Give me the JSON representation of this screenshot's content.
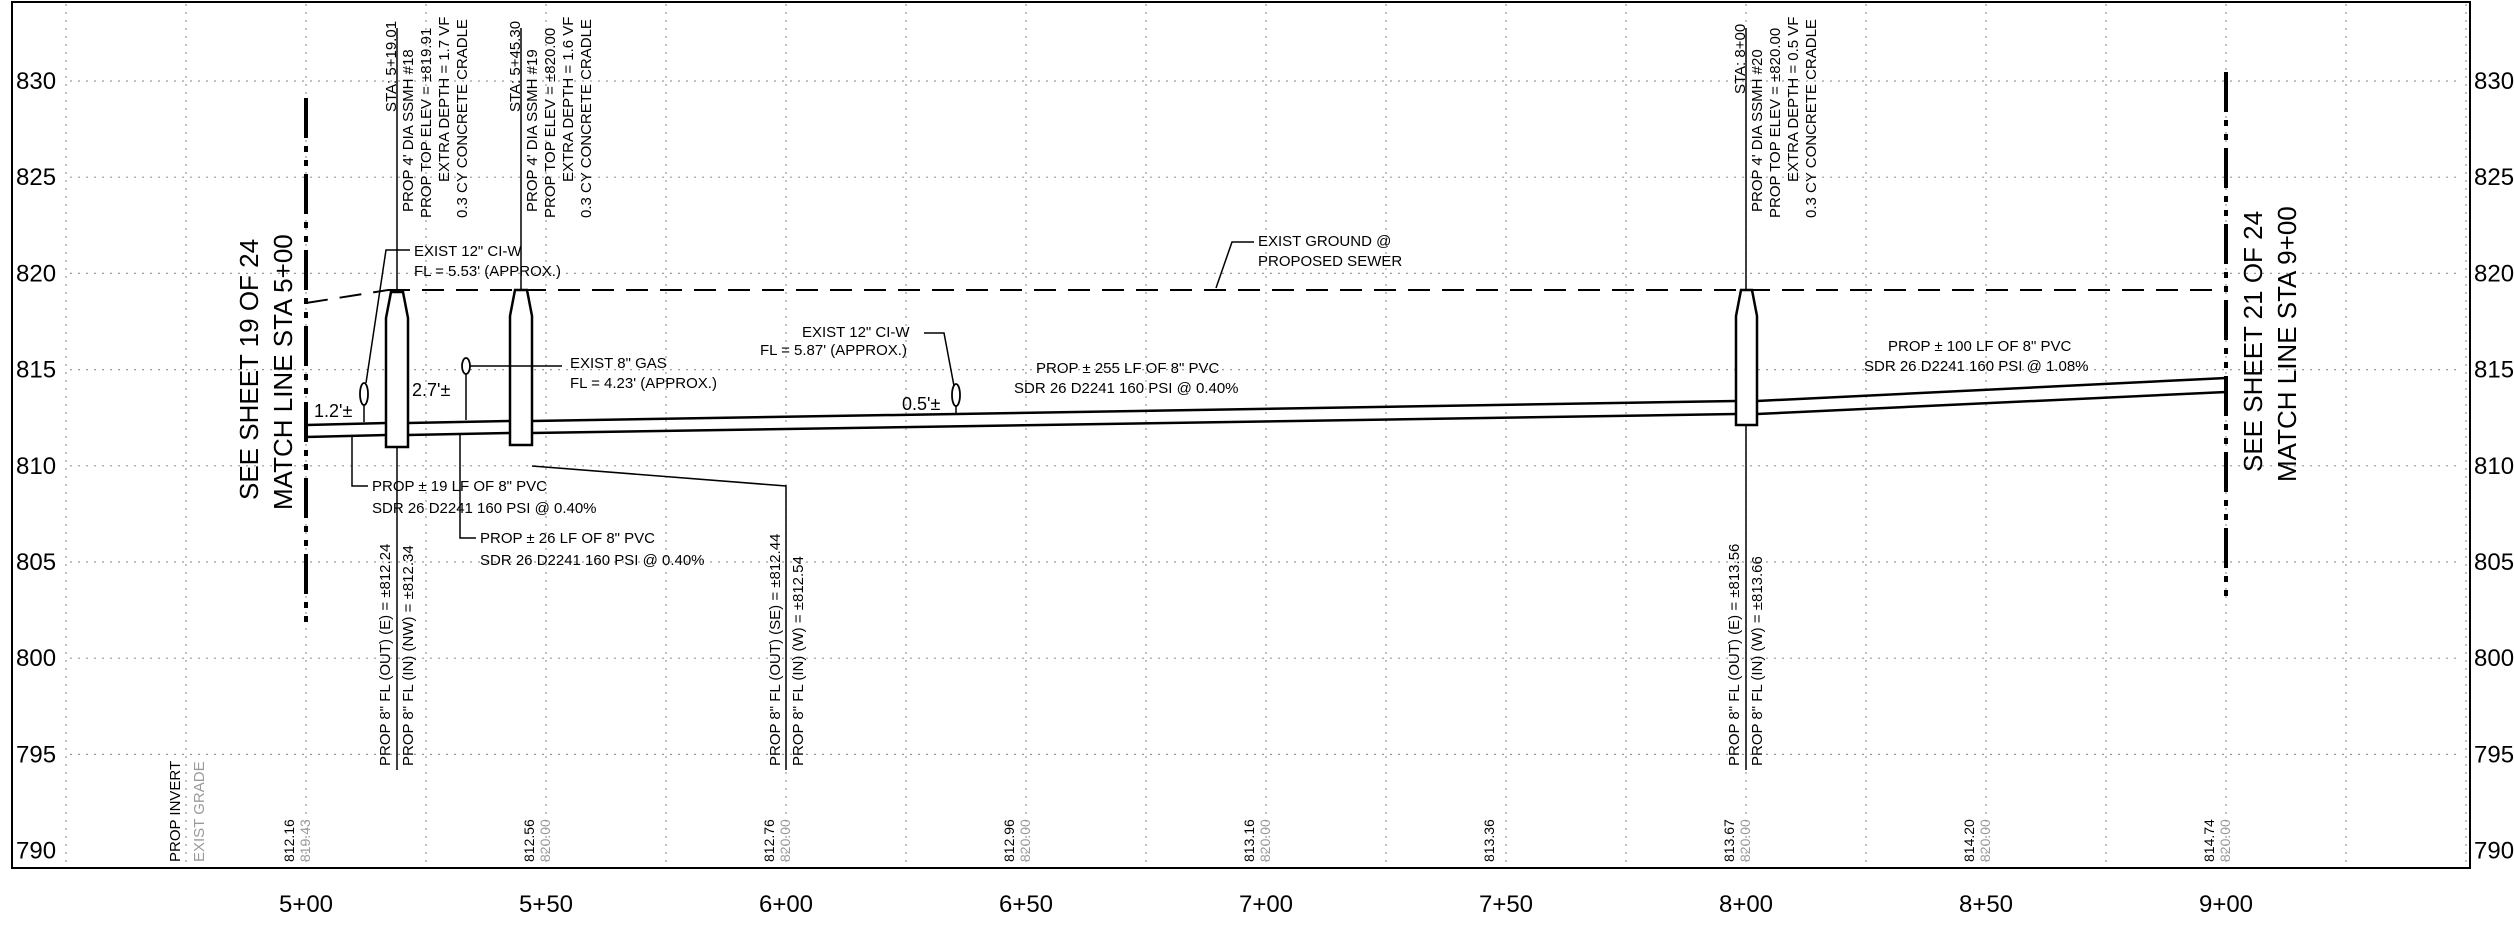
{
  "profile": {
    "elevation_labels": [
      "830",
      "825",
      "820",
      "815",
      "810",
      "805",
      "800",
      "795",
      "790"
    ],
    "elevations": [
      830,
      825,
      820,
      815,
      810,
      805,
      800,
      795,
      790
    ],
    "station_labels": [
      "5+00",
      "5+50",
      "6+00",
      "6+50",
      "7+00",
      "7+50",
      "8+00",
      "8+50",
      "9+00"
    ],
    "stations": [
      500,
      550,
      600,
      650,
      700,
      750,
      800,
      850,
      900
    ],
    "row_labels": {
      "invert": "PROP INVERT",
      "grade": "EXIST GRADE"
    },
    "invert_values": [
      "812.16",
      "812.56",
      "812.76",
      "812.96",
      "813.16",
      "813.36",
      "813.67",
      "814.20",
      "814.74"
    ],
    "invert_stations": [
      500,
      550,
      600,
      650,
      700,
      750,
      800,
      850,
      900
    ],
    "grade_values": [
      "819.43",
      "820.00",
      "820.00",
      "820.00",
      "820.00",
      "820.00",
      "820.00",
      "820.00"
    ],
    "grade_stations": [
      500,
      550,
      600,
      650,
      700,
      800,
      850,
      900
    ],
    "colors": {
      "line": "#000000",
      "grid": "#9a9a9a",
      "grade_text": "#9a9a9a"
    }
  },
  "match_lines": {
    "left": {
      "line1": "SEE SHEET 19 OF 24",
      "line2": "MATCH LINE STA 5+00"
    },
    "right": {
      "line1": "SEE SHEET 21 OF 24",
      "line2": "MATCH LINE STA 9+00"
    }
  },
  "manholes": [
    {
      "sta": "STA: 5+19.01",
      "name": "PROP 4' DIA SSMH #18",
      "top": "PROP TOP ELEV = ±819.91",
      "depth": "EXTRA DEPTH = 1.7 VF",
      "cradle": "0.3 CY CONCRETE CRADLE",
      "fl_out": "PROP 8\" FL (OUT) (E) = ±812.24",
      "fl_in": "PROP 8\" FL (IN) (NW) = ±812.34"
    },
    {
      "sta": "STA: 5+45.30",
      "name": "PROP 4' DIA SSMH #19",
      "top": "PROP TOP ELEV = ±820.00",
      "depth": "EXTRA DEPTH = 1.6 VF",
      "cradle": "0.3 CY CONCRETE CRADLE",
      "fl_out": "PROP 8\" FL (OUT) (SE) = ±812.44",
      "fl_in": "PROP 8\" FL (IN) (W) = ±812.54"
    },
    {
      "sta": "STA: 8+00",
      "name": "PROP 4' DIA SSMH #20",
      "top": "PROP TOP ELEV = ±820.00",
      "depth": "EXTRA DEPTH = 0.5 VF",
      "cradle": "0.3 CY CONCRETE CRADLE",
      "fl_out": "PROP 8\" FL (OUT) (E) = ±813.56",
      "fl_in": "PROP 8\" FL (IN) (W) = ±813.66"
    }
  ],
  "pipes": [
    {
      "line1": "PROP ± 19 LF OF 8\" PVC",
      "line2": "SDR 26 D2241 160 PSI @ 0.40%"
    },
    {
      "line1": "PROP ± 26 LF OF 8\" PVC",
      "line2": "SDR 26 D2241 160 PSI @ 0.40%"
    },
    {
      "line1": "PROP ± 255 LF OF 8\" PVC",
      "line2": "SDR 26 D2241 160 PSI @ 0.40%"
    },
    {
      "line1": "PROP ± 100 LF OF 8\" PVC",
      "line2": "SDR 26 D2241 160 PSI @ 1.08%"
    }
  ],
  "utilities": [
    {
      "line1": "EXIST 12\" CI-W",
      "line2": "FL = 5.53' (APPROX.)",
      "clearance": "1.2'±"
    },
    {
      "line1": "EXIST 8\" GAS",
      "line2": "FL = 4.23' (APPROX.)",
      "clearance": "2.7'±"
    },
    {
      "line1": "EXIST 12\" CI-W",
      "line2": "FL = 5.87' (APPROX.)",
      "clearance": "0.5'±"
    }
  ],
  "ground_note": {
    "line1": "EXIST GROUND @",
    "line2": "PROPOSED SEWER"
  }
}
